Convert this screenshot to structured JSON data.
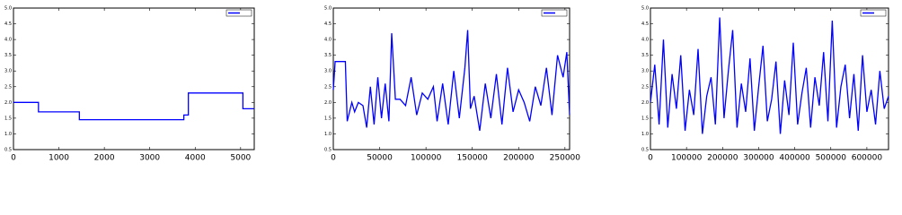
{
  "chart_data": [
    {
      "type": "line",
      "x": [
        0,
        550,
        550,
        1450,
        1450,
        3750,
        3750,
        3850,
        3850,
        5050,
        5050,
        5300
      ],
      "series": [
        {
          "color": "#0000ff",
          "values": [
            2.0,
            2.0,
            1.7,
            1.7,
            1.45,
            1.45,
            1.6,
            1.6,
            2.3,
            2.3,
            1.8,
            1.8
          ]
        }
      ],
      "xlim": [
        0,
        5300
      ],
      "xticks": [
        0,
        1000,
        2000,
        3000,
        4000,
        5000
      ],
      "ylim": [
        0.5,
        5.0
      ],
      "yticks": [
        0.5,
        {
          "value": 1,
          "label": "1.0"
        },
        1.5,
        {
          "value": 2,
          "label": "2.0"
        },
        2.5,
        {
          "value": 3,
          "label": "3.0"
        },
        3.5,
        {
          "value": 4,
          "label": "4.0"
        },
        4.5,
        {
          "value": 5,
          "label": "5.0"
        }
      ],
      "legend": "upper right"
    },
    {
      "type": "line",
      "x": [
        0,
        2000,
        3000,
        13000,
        15000,
        20000,
        23000,
        27000,
        32000,
        36000,
        40000,
        44000,
        48000,
        52000,
        56000,
        60000,
        63000,
        67000,
        72000,
        78000,
        84000,
        90000,
        96000,
        102000,
        108000,
        112000,
        118000,
        124000,
        130000,
        136000,
        142000,
        145000,
        148000,
        152000,
        158000,
        164000,
        170000,
        176000,
        182000,
        188000,
        194000,
        200000,
        206000,
        212000,
        218000,
        224000,
        230000,
        236000,
        242000,
        248000,
        252000,
        255000
      ],
      "series": [
        {
          "color": "#0000ff",
          "values": [
            2.4,
            3.3,
            3.3,
            3.3,
            1.4,
            2.0,
            1.7,
            2.0,
            1.9,
            1.2,
            2.5,
            1.3,
            2.8,
            1.5,
            2.6,
            1.4,
            4.2,
            2.1,
            2.1,
            1.9,
            2.8,
            1.6,
            2.3,
            2.1,
            2.5,
            1.4,
            2.6,
            1.3,
            3.0,
            1.5,
            3.1,
            4.3,
            1.8,
            2.2,
            1.1,
            2.6,
            1.5,
            2.9,
            1.3,
            3.1,
            1.7,
            2.4,
            2.0,
            1.4,
            2.5,
            1.9,
            3.1,
            1.6,
            3.5,
            2.8,
            3.6,
            1.6
          ]
        }
      ],
      "xlim": [
        0,
        255000
      ],
      "xticks": [
        0,
        50000,
        100000,
        150000,
        200000,
        250000
      ],
      "ylim": [
        0.5,
        5.0
      ],
      "yticks": [
        0.5,
        {
          "value": 1,
          "label": "1.0"
        },
        1.5,
        {
          "value": 2,
          "label": "2.0"
        },
        2.5,
        {
          "value": 3,
          "label": "3.0"
        },
        3.5,
        {
          "value": 4,
          "label": "4.0"
        },
        4.5,
        {
          "value": 5,
          "label": "5.0"
        }
      ],
      "legend": "upper right"
    },
    {
      "type": "line",
      "x": [
        0,
        12000,
        24000,
        36000,
        48000,
        60000,
        72000,
        84000,
        96000,
        108000,
        120000,
        132000,
        144000,
        156000,
        168000,
        180000,
        192000,
        204000,
        216000,
        228000,
        240000,
        252000,
        264000,
        276000,
        288000,
        300000,
        312000,
        324000,
        336000,
        348000,
        360000,
        372000,
        384000,
        396000,
        408000,
        420000,
        432000,
        444000,
        456000,
        468000,
        480000,
        492000,
        504000,
        516000,
        528000,
        540000,
        552000,
        564000,
        576000,
        588000,
        600000,
        612000,
        624000,
        636000,
        648000,
        660000
      ],
      "series": [
        {
          "color": "#0000ff",
          "values": [
            2.0,
            3.2,
            1.3,
            4.0,
            1.2,
            2.9,
            1.8,
            3.5,
            1.1,
            2.4,
            1.6,
            3.7,
            1.0,
            2.2,
            2.8,
            1.3,
            4.7,
            1.5,
            3.0,
            4.3,
            1.2,
            2.6,
            1.7,
            3.4,
            1.1,
            2.5,
            3.8,
            1.4,
            2.1,
            3.3,
            1.0,
            2.7,
            1.6,
            3.9,
            1.3,
            2.3,
            3.1,
            1.2,
            2.8,
            1.9,
            3.6,
            1.4,
            4.6,
            1.2,
            2.5,
            3.2,
            1.5,
            2.9,
            1.1,
            3.5,
            1.7,
            2.4,
            1.3,
            3.0,
            1.8,
            2.2
          ]
        }
      ],
      "xlim": [
        0,
        660000
      ],
      "xticks": [
        0,
        100000,
        200000,
        300000,
        400000,
        500000,
        600000
      ],
      "ylim": [
        0.5,
        5.0
      ],
      "yticks": [
        0.5,
        {
          "value": 1,
          "label": "1.0"
        },
        1.5,
        {
          "value": 2,
          "label": "2.0"
        },
        2.5,
        {
          "value": 3,
          "label": "3.0"
        },
        3.5,
        {
          "value": 4,
          "label": "4.0"
        },
        4.5,
        {
          "value": 5,
          "label": "5.0"
        }
      ],
      "legend": "upper right"
    }
  ]
}
